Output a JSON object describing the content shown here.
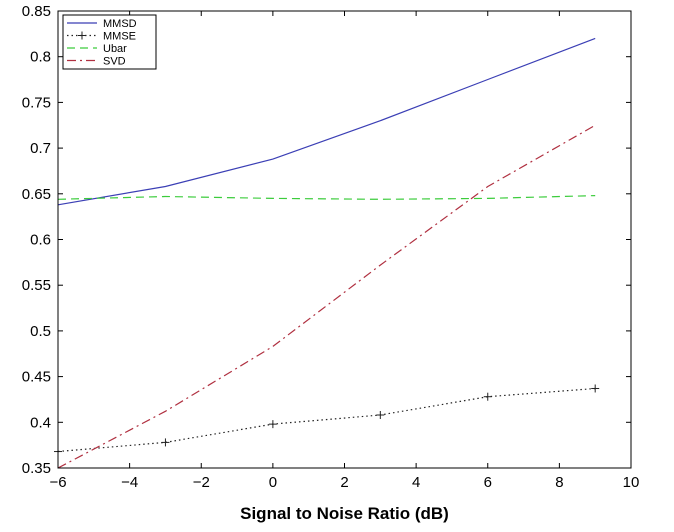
{
  "chart_data": {
    "type": "line",
    "title": "",
    "xlabel": "Signal to Noise Ratio (dB)",
    "ylabel": "",
    "xlim": [
      -6,
      10
    ],
    "ylim": [
      0.35,
      0.85
    ],
    "xticks": [
      -6,
      -4,
      -2,
      0,
      2,
      4,
      6,
      8,
      10
    ],
    "xtick_labels": [
      "−6",
      "−4",
      "−2",
      "0",
      "2",
      "4",
      "6",
      "8",
      "10"
    ],
    "yticks": [
      0.35,
      0.4,
      0.45,
      0.5,
      0.55,
      0.6,
      0.65,
      0.7,
      0.75,
      0.8,
      0.85
    ],
    "ytick_labels": [
      "0.35",
      "0.4",
      "0.45",
      "0.5",
      "0.55",
      "0.6",
      "0.65",
      "0.7",
      "0.75",
      "0.8",
      "0.85"
    ],
    "grid": false,
    "legend_position": "top-left",
    "series": [
      {
        "name": "MMSD",
        "color": "#3b3fb5",
        "style": "solid",
        "marker": "none",
        "x": [
          -6,
          -3,
          0,
          3,
          6,
          9
        ],
        "y": [
          0.638,
          0.658,
          0.688,
          0.73,
          0.775,
          0.82
        ]
      },
      {
        "name": "MMSE",
        "color": "#222222",
        "style": "dotted",
        "marker": "plus",
        "x": [
          -6,
          -3,
          0,
          3,
          6,
          9
        ],
        "y": [
          0.368,
          0.378,
          0.398,
          0.408,
          0.428,
          0.437
        ]
      },
      {
        "name": "Ubar",
        "color": "#3ccc3c",
        "style": "dashed",
        "marker": "none",
        "x": [
          -6,
          -3,
          0,
          3,
          6,
          9
        ],
        "y": [
          0.644,
          0.647,
          0.645,
          0.644,
          0.645,
          0.648
        ]
      },
      {
        "name": "SVD",
        "color": "#b03040",
        "style": "dashdot",
        "marker": "none",
        "x": [
          -6,
          -3,
          0,
          3,
          6,
          9
        ],
        "y": [
          0.35,
          0.412,
          0.483,
          0.572,
          0.658,
          0.725
        ]
      }
    ]
  }
}
